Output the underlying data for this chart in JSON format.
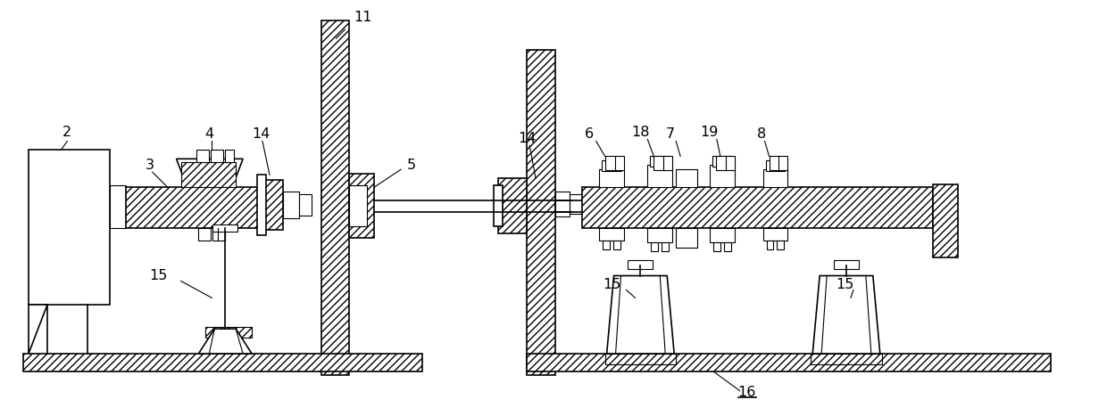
{
  "bg_color": "#ffffff",
  "line_color": "#000000",
  "fig_width": 12.4,
  "fig_height": 4.58,
  "dpi": 100
}
